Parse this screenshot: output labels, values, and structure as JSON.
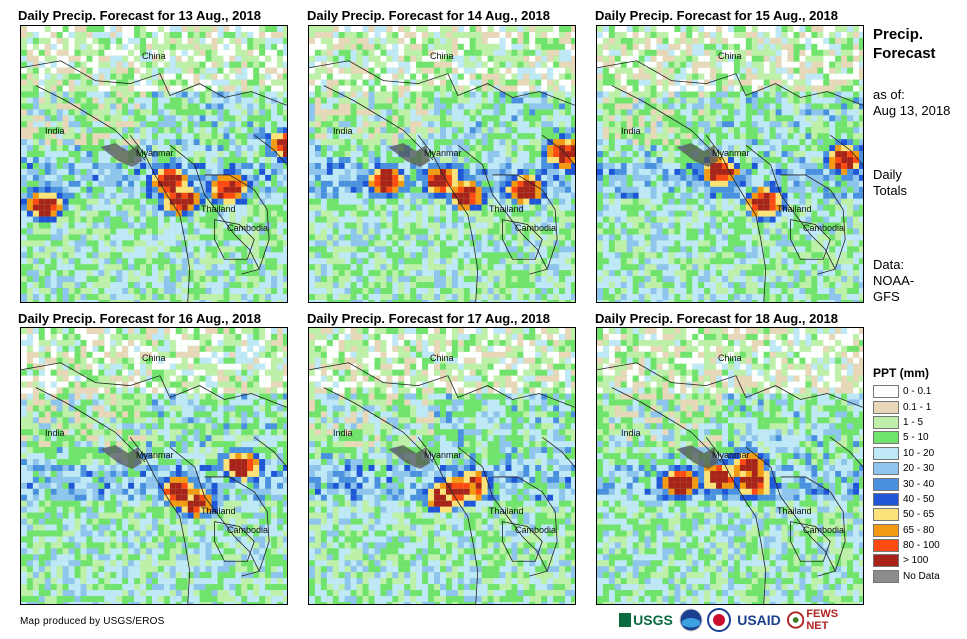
{
  "panels": [
    {
      "title": "Daily Precip. Forecast for 13 Aug., 2018"
    },
    {
      "title": "Daily Precip. Forecast for 14 Aug., 2018"
    },
    {
      "title": "Daily Precip. Forecast for 15 Aug., 2018"
    },
    {
      "title": "Daily Precip. Forecast for 16 Aug., 2018"
    },
    {
      "title": "Daily Precip. Forecast for 17 Aug., 2018"
    },
    {
      "title": "Daily Precip. Forecast for 18 Aug., 2018"
    }
  ],
  "map_labels": {
    "china": "China",
    "india": "India",
    "myanmar": "Myanmar",
    "thailand": "Thailand",
    "cambodia": "Cambodia"
  },
  "sidebar": {
    "title_line1": "Precip.",
    "title_line2": "Forecast",
    "asof_label": "as of:",
    "asof_date": "Aug 13, 2018",
    "totals_line1": "Daily",
    "totals_line2": "Totals",
    "data_line1": "Data:",
    "data_line2": "NOAA-",
    "data_line3": "GFS"
  },
  "legend": {
    "title": "PPT (mm)",
    "items": [
      {
        "label": "0 - 0.1",
        "color": "#ffffff"
      },
      {
        "label": "0.1 - 1",
        "color": "#e8d7b8"
      },
      {
        "label": "1 - 5",
        "color": "#bff0a9"
      },
      {
        "label": "5 - 10",
        "color": "#6fe36b"
      },
      {
        "label": "10 - 20",
        "color": "#bfe8f8"
      },
      {
        "label": "20 - 30",
        "color": "#8ec4ee"
      },
      {
        "label": "30 - 40",
        "color": "#4a90e0"
      },
      {
        "label": "40 - 50",
        "color": "#1f55d8"
      },
      {
        "label": "50 - 65",
        "color": "#fde27a"
      },
      {
        "label": "65 - 80",
        "color": "#f39a12"
      },
      {
        "label": "80 - 100",
        "color": "#ff4a12"
      },
      {
        "label": "> 100",
        "color": "#a8241b"
      },
      {
        "label": "No Data",
        "color": "#8c8c8c"
      }
    ]
  },
  "footer": {
    "credit": "Map produced by USGS/EROS",
    "logo_usgs": "USGS",
    "logo_usaid": "USAID",
    "logo_fewsnet": "FEWS NET"
  }
}
